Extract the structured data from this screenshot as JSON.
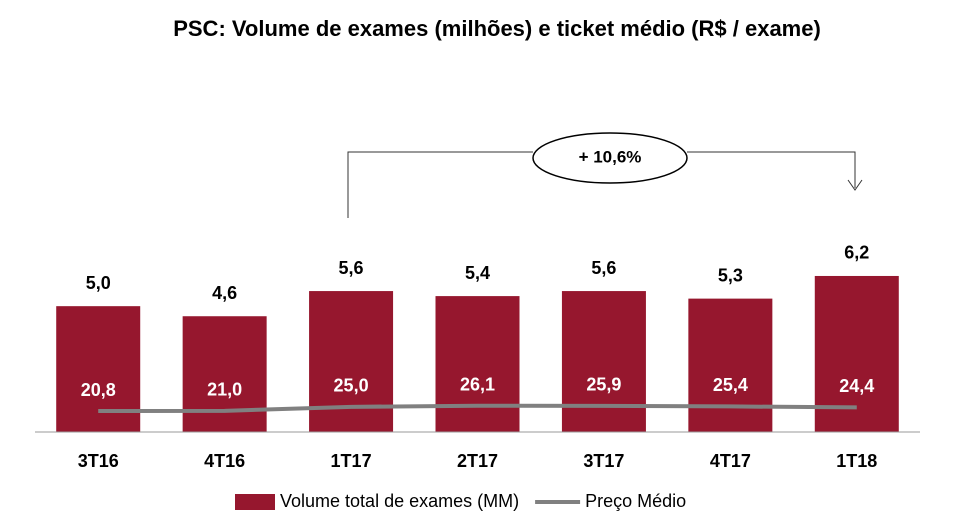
{
  "chart_data": {
    "type": "bar",
    "title": "PSC: Volume de exames (milhões) e ticket médio (R$ / exame)",
    "categories": [
      "3T16",
      "4T16",
      "1T17",
      "2T17",
      "3T17",
      "4T17",
      "1T18"
    ],
    "series": [
      {
        "name": "Volume total de exames (MM)",
        "color": "#96172e",
        "values": [
          5.0,
          4.6,
          5.6,
          5.4,
          5.6,
          5.3,
          6.2
        ],
        "value_labels": [
          "5,0",
          "4,6",
          "5,6",
          "5,4",
          "5,6",
          "5,3",
          "6,2"
        ]
      },
      {
        "name": "Preço Médio",
        "color": "#808080",
        "axis": "y2",
        "values": [
          20.8,
          21.0,
          25.0,
          26.1,
          25.9,
          25.4,
          24.4
        ],
        "value_labels": [
          "20,8",
          "21,0",
          "25,0",
          "26,1",
          "25,9",
          "25,4",
          "24,4"
        ]
      }
    ],
    "ylim": [
      0,
      12
    ],
    "y2lim": [
      0,
      300
    ],
    "annotation": "+ 10,6%"
  }
}
